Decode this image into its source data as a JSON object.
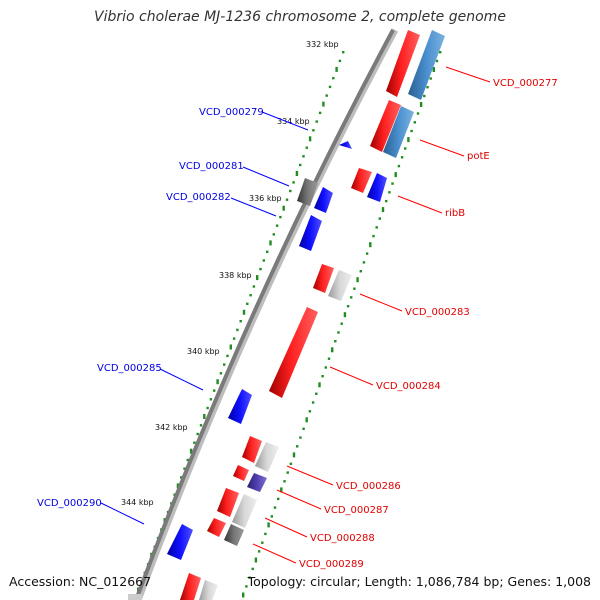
{
  "title": "Vibrio cholerae MJ-1236 chromosome 2, complete genome",
  "footer": {
    "accession": "Accession: NC_012667",
    "topology": "Topology: circular; Length: 1,086,784 bp; Genes: 1,008"
  },
  "colors": {
    "forward_gene": "#ff0000",
    "reverse_gene": "#0000ff",
    "grey_feature": "#c8c8c8",
    "dark_grey_feature": "#666666",
    "steel_blue_feature": "#4682b4",
    "purple_feature": "#4b3fa0",
    "gc_dots": "#228b22",
    "backbone": "#808080"
  },
  "ticks": [
    {
      "label": "332 kbp"
    },
    {
      "label": "334 kbp"
    },
    {
      "label": "336 kbp"
    },
    {
      "label": "338 kbp"
    },
    {
      "label": "340 kbp"
    },
    {
      "label": "342 kbp"
    },
    {
      "label": "344 kbp"
    }
  ],
  "genes_forward": [
    {
      "label": "VCD_000277"
    },
    {
      "label": "potE"
    },
    {
      "label": "ribB"
    },
    {
      "label": "VCD_000283"
    },
    {
      "label": "VCD_000284"
    },
    {
      "label": "VCD_000286"
    },
    {
      "label": "VCD_000287"
    },
    {
      "label": "VCD_000288"
    },
    {
      "label": "VCD_000289"
    }
  ],
  "genes_reverse": [
    {
      "label": "VCD_000279"
    },
    {
      "label": "VCD_000281"
    },
    {
      "label": "VCD_000282"
    },
    {
      "label": "VCD_000285"
    },
    {
      "label": "VCD_000290"
    }
  ]
}
